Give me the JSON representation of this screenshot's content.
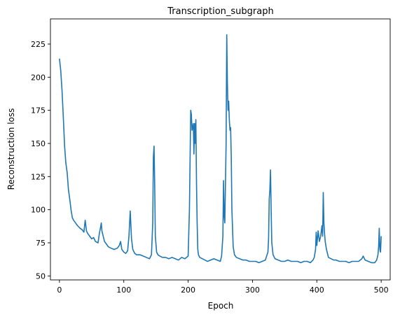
{
  "chart_data": {
    "type": "line",
    "title": "Transcription_subgraph",
    "xlabel": "Epoch",
    "ylabel": "Reconstruction loss",
    "xlim": [
      -14,
      514
    ],
    "ylim": [
      47,
      244
    ],
    "xticks": [
      0,
      100,
      200,
      300,
      400,
      500
    ],
    "yticks": [
      50,
      75,
      100,
      125,
      150,
      175,
      200,
      225
    ],
    "grid": false,
    "legend": "none",
    "line_color": "#1f77b4",
    "series": [
      {
        "x": [
          0,
          2,
          4,
          6,
          8,
          10,
          12,
          14,
          16,
          18,
          20,
          22,
          25,
          28,
          32,
          35,
          38,
          40,
          42,
          44,
          47,
          50,
          53,
          56,
          60,
          62,
          64,
          65,
          66,
          68,
          70,
          73,
          76,
          80,
          85,
          90,
          93,
          95,
          97,
          100,
          103,
          106,
          108,
          110,
          112,
          114,
          117,
          120,
          125,
          130,
          135,
          140,
          143,
          145,
          146,
          147,
          148,
          149,
          151,
          153,
          156,
          160,
          165,
          170,
          175,
          180,
          185,
          190,
          195,
          200,
          202,
          204,
          205,
          206,
          208,
          209,
          210,
          211,
          212,
          213,
          214,
          215,
          216,
          218,
          222,
          226,
          230,
          235,
          240,
          245,
          250,
          252,
          254,
          255,
          256,
          257,
          258,
          259,
          260,
          261,
          262,
          263,
          264,
          265,
          266,
          267,
          268,
          270,
          272,
          275,
          280,
          285,
          290,
          295,
          300,
          305,
          310,
          315,
          320,
          324,
          325,
          326,
          327,
          328,
          329,
          330,
          332,
          335,
          340,
          345,
          350,
          355,
          360,
          365,
          370,
          375,
          380,
          385,
          390,
          392,
          394,
          396,
          398,
          399,
          400,
          402,
          404,
          406,
          408,
          409,
          410,
          411,
          412,
          413,
          415,
          418,
          422,
          426,
          430,
          435,
          440,
          445,
          450,
          455,
          460,
          465,
          470,
          472,
          475,
          480,
          485,
          490,
          493,
          495,
          496,
          497,
          498,
          499,
          500
        ],
        "y": [
          214,
          205,
          190,
          170,
          148,
          135,
          128,
          115,
          108,
          100,
          94,
          92,
          90,
          88,
          86,
          85,
          83,
          92,
          84,
          82,
          80,
          78,
          79,
          76,
          75,
          82,
          87,
          90,
          84,
          80,
          76,
          74,
          72,
          71,
          70,
          71,
          73,
          76,
          70,
          68,
          67,
          69,
          80,
          99,
          78,
          70,
          67,
          66,
          66,
          65,
          64,
          63,
          66,
          90,
          140,
          148,
          120,
          80,
          68,
          66,
          65,
          64,
          64,
          63,
          64,
          63,
          62,
          64,
          63,
          65,
          100,
          175,
          172,
          160,
          165,
          142,
          165,
          150,
          168,
          120,
          90,
          70,
          66,
          64,
          63,
          62,
          61,
          62,
          63,
          62,
          61,
          65,
          80,
          122,
          95,
          90,
          120,
          150,
          232,
          195,
          175,
          182,
          168,
          160,
          162,
          140,
          100,
          72,
          66,
          64,
          63,
          62,
          62,
          61,
          61,
          61,
          60,
          61,
          62,
          68,
          78,
          108,
          115,
          130,
          100,
          75,
          66,
          63,
          62,
          61,
          61,
          62,
          61,
          61,
          61,
          60,
          61,
          61,
          60,
          61,
          62,
          64,
          70,
          83,
          73,
          84,
          76,
          80,
          88,
          80,
          113,
          90,
          82,
          76,
          70,
          64,
          63,
          62,
          62,
          61,
          61,
          61,
          60,
          61,
          61,
          61,
          63,
          65,
          62,
          61,
          60,
          60,
          62,
          66,
          72,
          86,
          70,
          68,
          80
        ]
      }
    ]
  }
}
